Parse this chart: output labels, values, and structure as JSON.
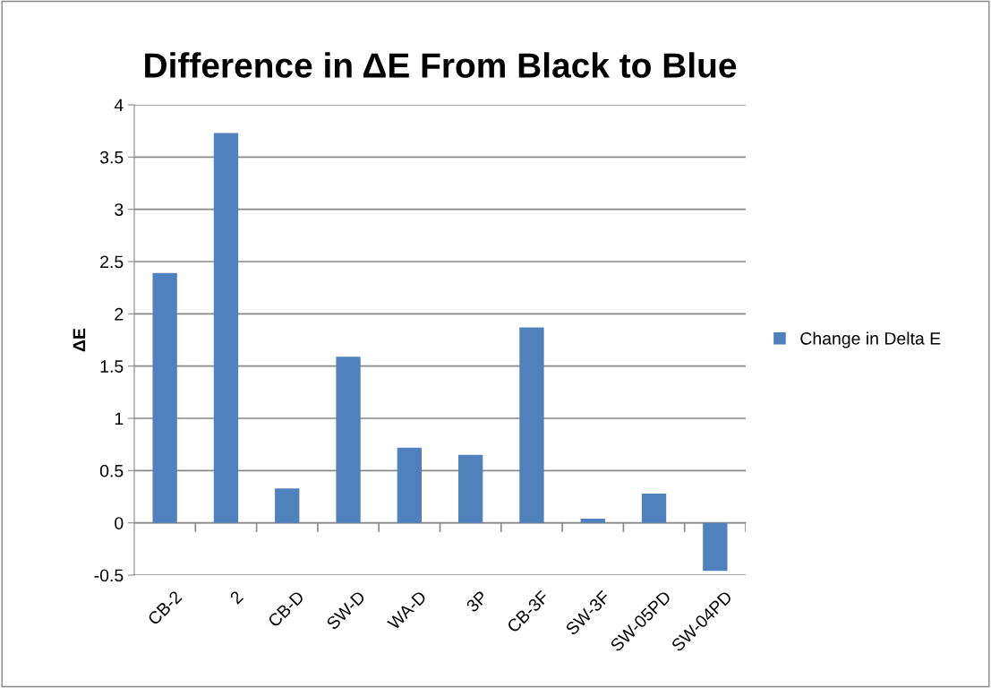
{
  "chart_data": {
    "type": "bar",
    "title": "Difference in ΔE From Black to Blue",
    "ylabel": "ΔE",
    "categories": [
      "CB-2",
      "2",
      "CB-D",
      "SW-D",
      "WA-D",
      "3P",
      "CB-3F",
      "SW-3F",
      "SW-05PD",
      "SW-04PD"
    ],
    "series": [
      {
        "name": "Change in Delta E",
        "color": "#4f81bd",
        "values": [
          2.39,
          3.73,
          0.33,
          1.59,
          0.72,
          0.65,
          1.87,
          0.04,
          0.28,
          -0.46
        ]
      }
    ],
    "ylim": [
      -0.5,
      4
    ],
    "yticks": [
      -0.5,
      0,
      0.5,
      1,
      1.5,
      2,
      2.5,
      3,
      3.5,
      4
    ],
    "grid": "y",
    "legend": "right"
  }
}
